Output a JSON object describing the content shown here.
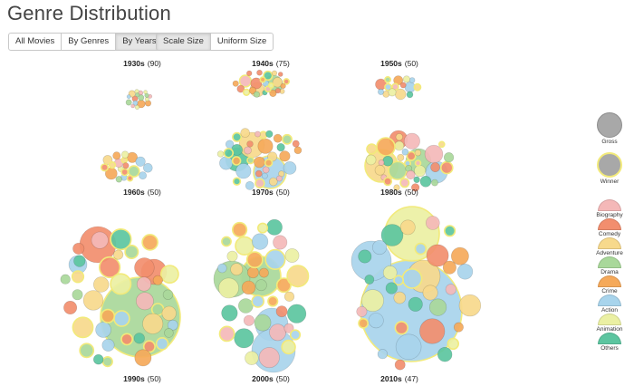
{
  "title": "Genre Distribution",
  "view_buttons": [
    {
      "label": "All Movies",
      "active": false
    },
    {
      "label": "By Genres",
      "active": false
    },
    {
      "label": "By Years",
      "active": true
    }
  ],
  "size_buttons": [
    {
      "label": "Scale Size",
      "active": true
    },
    {
      "label": "Uniform Size",
      "active": false
    }
  ],
  "decades": [
    {
      "label": "1930s",
      "count": "(90)"
    },
    {
      "label": "1940s",
      "count": "(75)"
    },
    {
      "label": "1950s",
      "count": "(50)"
    },
    {
      "label": "1960s",
      "count": "(50)"
    },
    {
      "label": "1970s",
      "count": "(50)"
    },
    {
      "label": "1980s",
      "count": "(50)"
    },
    {
      "label": "1990s",
      "count": "(50)"
    },
    {
      "label": "2000s",
      "count": "(50)"
    },
    {
      "label": "2010s",
      "count": "(47)"
    }
  ],
  "legend": {
    "status": [
      {
        "label": "Gross",
        "color": "#a8a8a8",
        "stroke": "#8e8e8e"
      },
      {
        "label": "Winner",
        "color": "#a8a8a8",
        "stroke": "#f2ea7a"
      }
    ],
    "genres": [
      {
        "label": "Biography",
        "color": "#f4b8b8"
      },
      {
        "label": "Comedy",
        "color": "#f28e6e"
      },
      {
        "label": "Adventure",
        "color": "#f7d98c"
      },
      {
        "label": "Drama",
        "color": "#a9d89a"
      },
      {
        "label": "Crime",
        "color": "#f5a95a"
      },
      {
        "label": "Action",
        "color": "#a8d4ec"
      },
      {
        "label": "Animation",
        "color": "#ebf0a3"
      },
      {
        "label": "Others",
        "color": "#5cc5a0"
      }
    ]
  }
}
